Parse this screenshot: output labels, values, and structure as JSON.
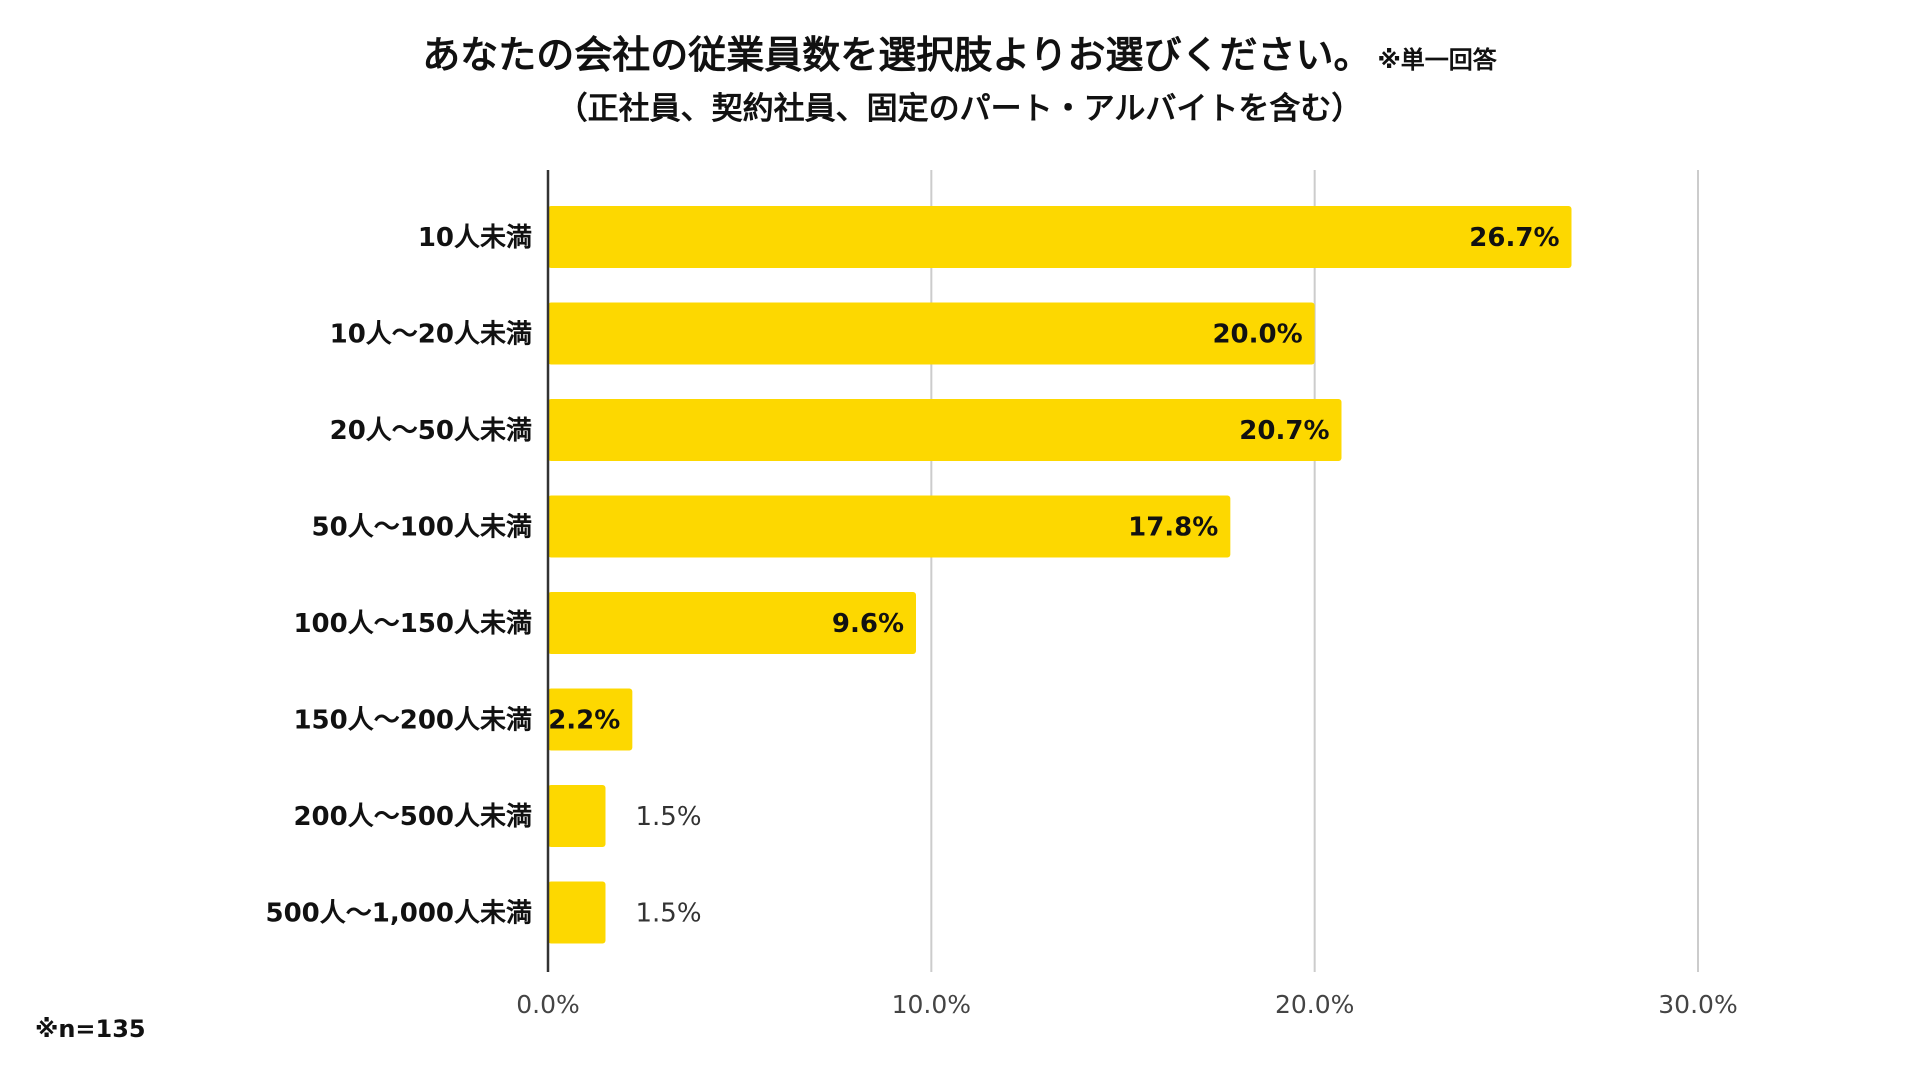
{
  "title": {
    "main": "あなたの会社の従業員数を選択肢よりお選びください。",
    "note": "※単一回答",
    "sub": "（正社員、契約社員、固定のパート・アルバイトを含む）"
  },
  "footnote": "※n=135",
  "colors": {
    "bar": "#FDD800",
    "grid": "#CCCCCC",
    "axis": "#333333"
  },
  "chart_data": {
    "type": "bar",
    "orientation": "horizontal",
    "categories": [
      "10人未満",
      "10人～20人未満",
      "20人～50人未満",
      "50人～100人未満",
      "100人～150人未満",
      "150人～200人未満",
      "200人～500人未満",
      "500人～1,000人未満"
    ],
    "values": [
      26.7,
      20.0,
      20.7,
      17.8,
      9.6,
      2.2,
      1.5,
      1.5
    ],
    "value_labels": [
      "26.7%",
      "20.0%",
      "20.7%",
      "17.8%",
      "9.6%",
      "2.2%",
      "1.5%",
      "1.5%"
    ],
    "xlim": [
      0,
      30
    ],
    "xticks": [
      0,
      10,
      20,
      30
    ],
    "xtick_labels": [
      "0.0%",
      "10.0%",
      "20.0%",
      "30.0%"
    ],
    "grid": true,
    "legend": "none"
  }
}
